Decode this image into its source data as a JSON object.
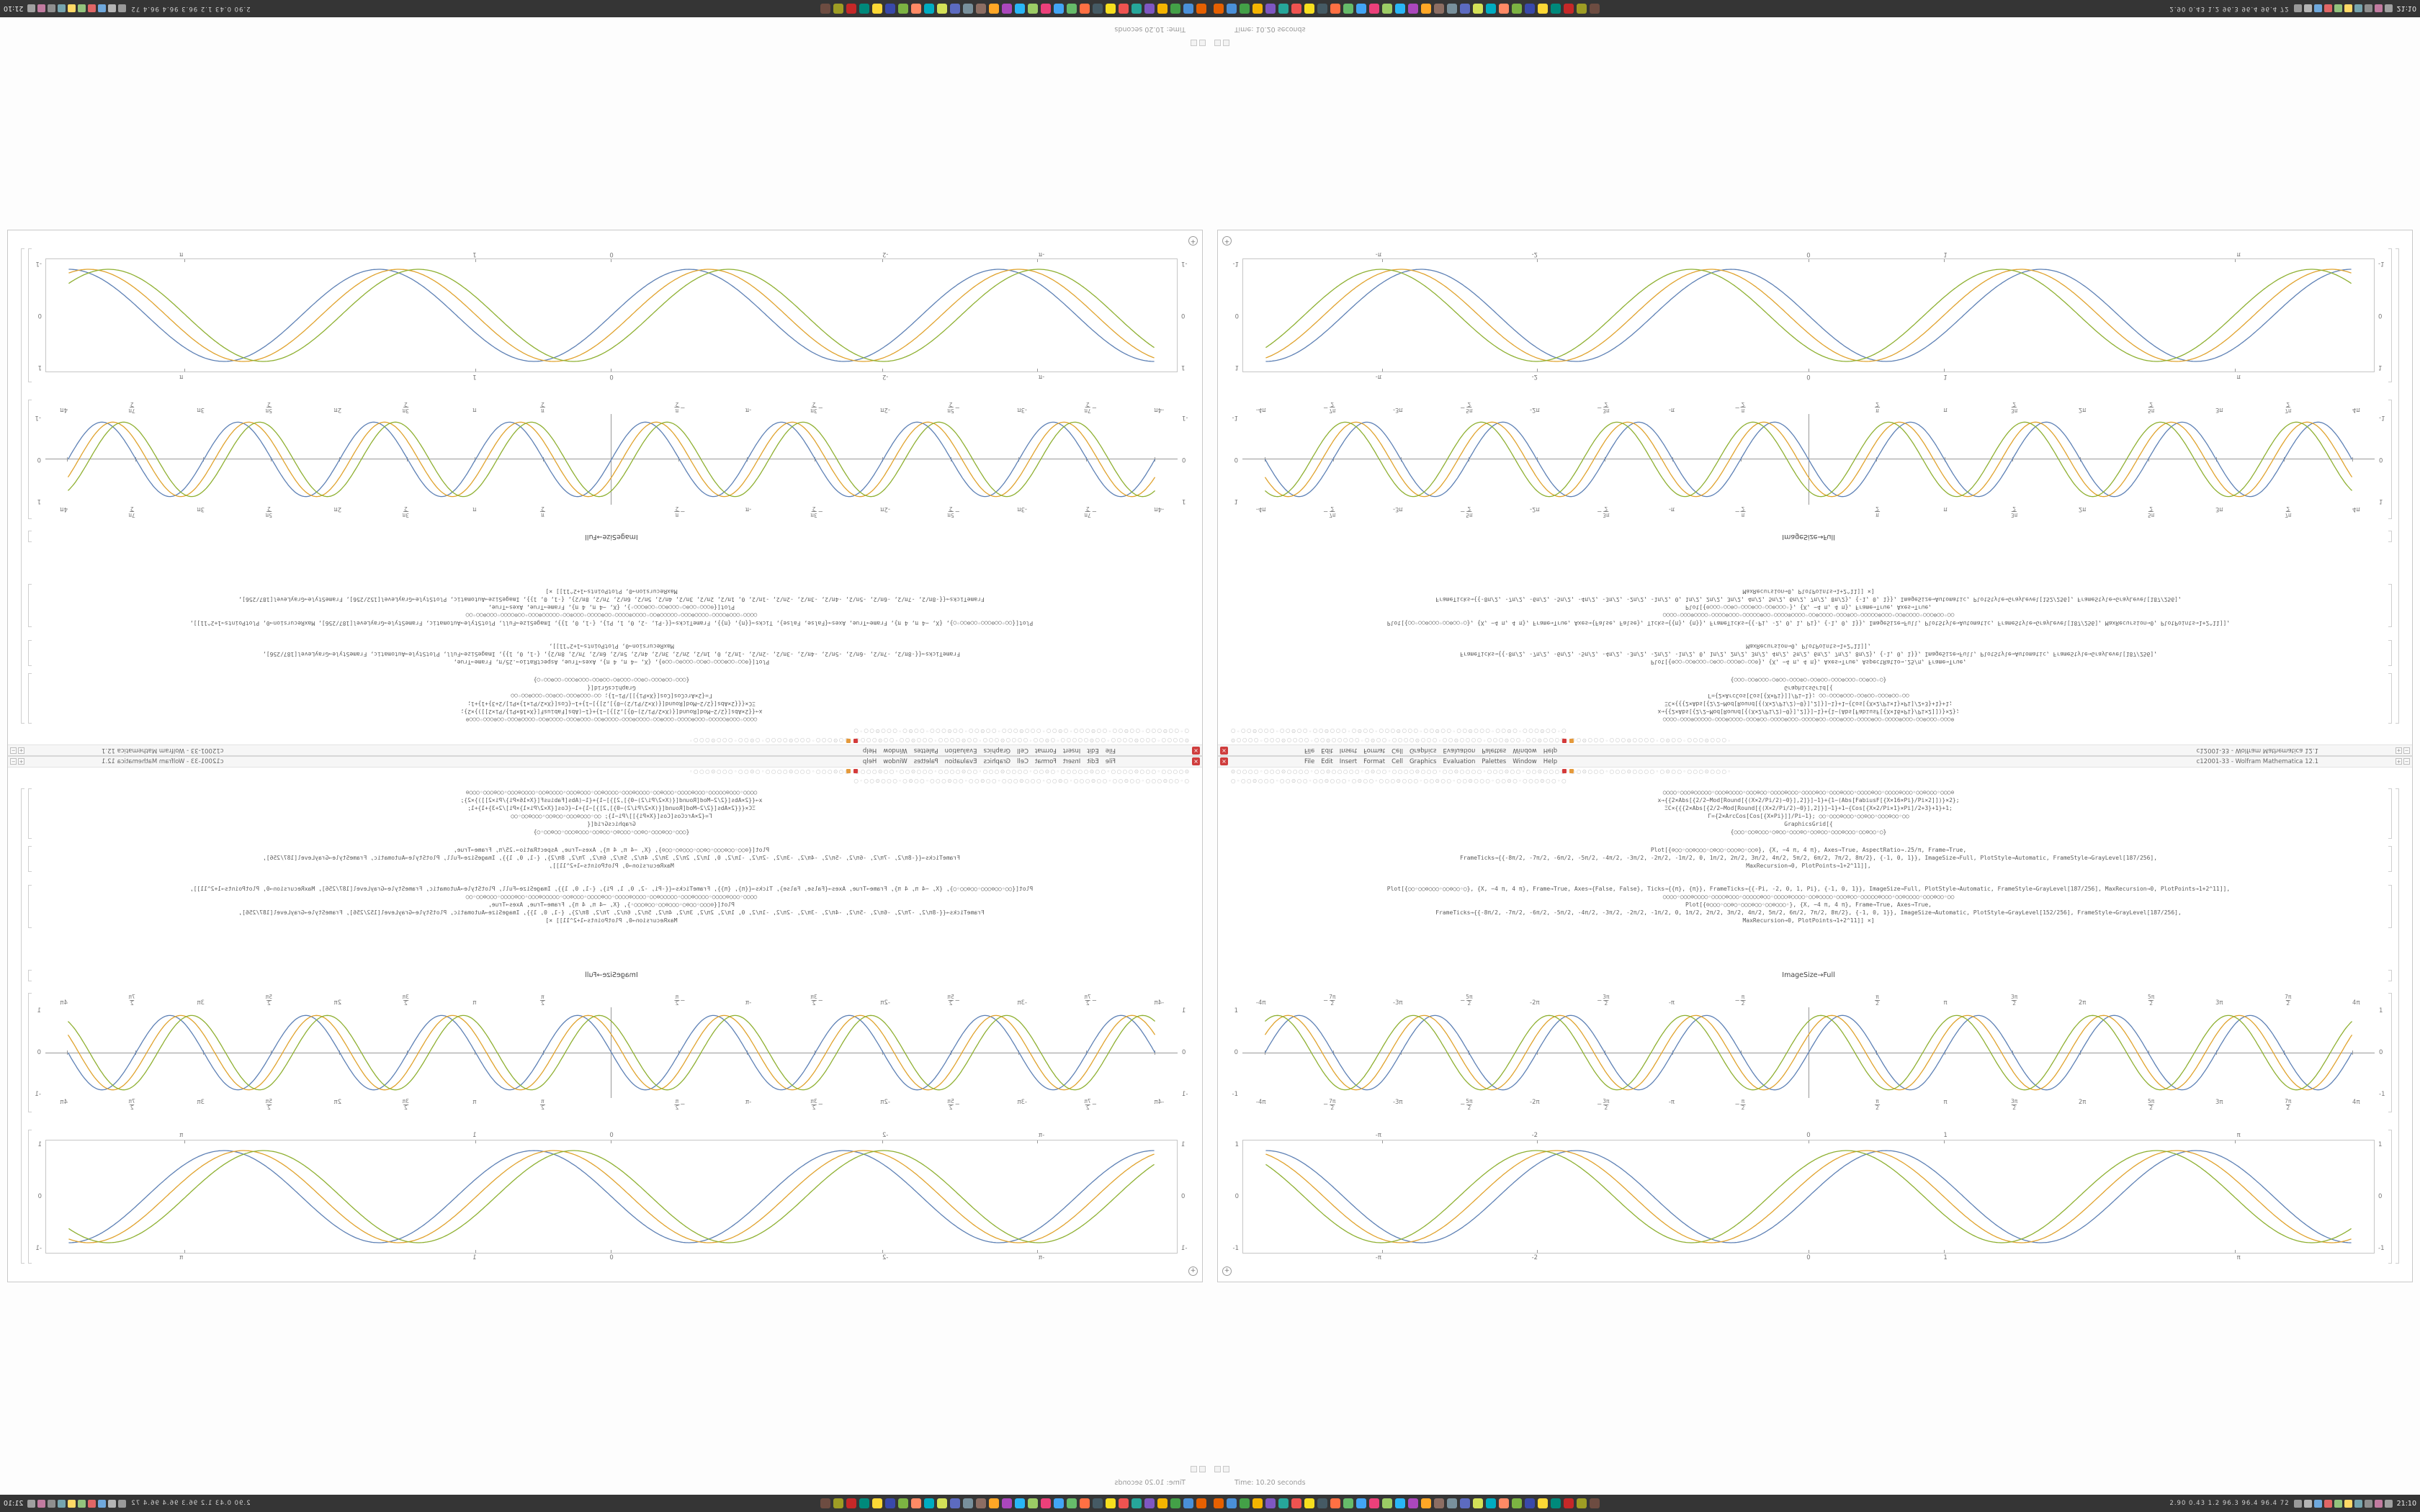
{
  "window": {
    "title": "c12001-33 - Wolfram Mathematica 12.1",
    "close_label": "×",
    "maximize_label": "+",
    "minimize_label": "−",
    "zoom_button": "+",
    "menu_items": [
      "File",
      "Edit",
      "Insert",
      "Format",
      "Cell",
      "Graphics",
      "Evaluation",
      "Palettes",
      "Window",
      "Help"
    ],
    "glyph_row_1": "⊙○○○○◦○○○⊙○○○○◦○○⊙○○○○○◦○⊙○○◦○○○○⊙○○○◦○○⊙○○○○◦○○○⊙○○◦○○⊙○○○○◦○○⊙○○○◦○○○⊙○○○○◦○⊙○○◦○○○⊙○○○◦",
    "glyph_row_2": "○◦○○⊙○○○◦○○⊙○○◦○○⊙○○○◦○⊙○○◦○○○⊙○○○◦○○⊙○○◦○○⊙○○○◦○○⊙○◦○○○⊙○○◦○",
    "accent_icon_colors": [
      "#d43b3b",
      "#e59a3c"
    ]
  },
  "notebook": {
    "out_label": "ImageSize→Full",
    "code_block_a": [
      "○○○○◦○○○⊙○○○○○◦○○○⊙○○○○◦○○○⊙○○◦○○○○⊙○○○◦○○○○⊙○○◦○○○⊙○○○◦○○○○⊙○○◦○○○○⊙○○○◦○○⊙○○○◦○○○⊙",
      "x→{{2×Abs[{2/2−Mod[Round[{(X×2/Pi/2)−0}],2]}]−1}+{1−(Abs[FabiusF[{X×16×Pi}/Pi×2]])}×2};",
      "ΞC×{{{2×Abs[{2/2−Mod[Round[{(X×2/Pi/2)−0}],2]}]−1}+1−{Cos[{X×2/Pi×1}×Pi]/2+3}+1}+1;",
      "Γ={2×ArcCos[Cos[{X×Pi}]]/Pi−1};   ○○◦○○○⊙○○○◦○○⊙○○◦○○○⊙○○◦○○",
      "GraphicsGrid[{",
      "{○○○◦○○⊙○○○◦○⊙○○◦○○○⊙○◦○○⊙○○◦○○○⊙○○○◦○○⊙○○◦○}"
    ],
    "code_block_b": [
      "Plot[{⊙○○◦○○⊙○○○◦○⊙○○◦○○○⊙○◦○○⊙}, {X, −4 π, 4 π}, Axes→True, AspectRatio→.25/π, Frame→True,",
      "FrameTicks→{{-8π/2, -7π/2, -6π/2, -5π/2, -4π/2, -3π/2, -2π/2, -1π/2, 0, 1π/2, 2π/2, 3π/2, 4π/2, 5π/2, 6π/2, 7π/2, 8π/2}, {-1, 0, 1}}, ImageSize→Full, PlotStyle→Automatic, FrameStyle→GrayLevel[187/256],",
      "MaxRecursion→0, PlotPoints→1+2^11]],"
    ],
    "code_block_c": [
      "Plot[{○○◦○○⊙○○○◦○○⊙○○◦○}, {X, −4 π, 4 π}, Frame→True, Axes→{False, False}, Ticks→{{π}, {π}}, FrameTicks→{{-Pi, -2, 0, 1, Pi}, {-1, 0, 1}}, ImageSize→Full, PlotStyle→Automatic, FrameStyle→GrayLevel[187/256], MaxRecursion→0, PlotPoints→1+2^11]],",
      "○○○○◦○○○⊙○○○○◦○○○○⊙○○○◦○○○○○⊙○○◦○○○○⊙○○○○◦○○⊙○○○○◦○○○⊙○○◦○○○○○⊙○○○◦○○⊙○○○○◦○○○⊙○○◦○○",
      "Plot[{⊙○○○◦○○⊙○◦○○○⊙○○◦○○⊙○○○◦}, {X, −4 π, 4 π}, Frame→True, Axes→True,",
      "FrameTicks→{{-8π/2, -7π/2, -6π/2, -5π/2, -4π/2, -3π/2, -2π/2, -1π/2, 0, 1π/2, 2π/2, 3π/2, 4π/2, 5π/2, 6π/2, 7π/2, 8π/2}, {-1, 0, 1}}, ImageSize→Automatic, PlotStyle→GrayLevel[152/256], FrameStyle→GrayLevel[187/256],",
      "MaxRecursion→0, PlotPoints→1+2^11]] ×]"
    ]
  },
  "chart_data": [
    {
      "type": "line",
      "title": "",
      "description": "Three phase-shifted sine curves plotted with center axes over [-4π, 4π]",
      "x_range": [
        -12.566,
        12.566
      ],
      "ylim": [
        -1,
        1
      ],
      "freq": 2,
      "series": [
        {
          "name": "blue-curve",
          "phase": 0,
          "color": "#5e81b5"
        },
        {
          "name": "orange-curve",
          "phase": 0.5,
          "color": "#e0a32e"
        },
        {
          "name": "green-curve",
          "phase": 1.0,
          "color": "#8fb032"
        }
      ],
      "x_tick_labels": [
        "-4π",
        "-7π/2",
        "-3π",
        "-5π/2",
        "-2π",
        "-3π/2",
        "-π",
        "-π/2",
        "",
        "π/2",
        "π",
        "3π/2",
        "2π",
        "5π/2",
        "3π",
        "7π/2",
        "4π"
      ],
      "y_tick_labels": [
        "1",
        "0",
        "-1"
      ],
      "frame": false,
      "axes": true
    },
    {
      "type": "line",
      "title": "",
      "description": "Three phase-shifted sine curves in a light gray frame",
      "x_range": [
        -4,
        4
      ],
      "ylim": [
        -1,
        1
      ],
      "freq": 2.75,
      "series": [
        {
          "name": "blue-curve",
          "phase": 0,
          "color": "#5e81b5"
        },
        {
          "name": "orange-curve",
          "phase": 0.4,
          "color": "#e0a32e"
        },
        {
          "name": "green-curve",
          "phase": 0.8,
          "color": "#8fb032"
        }
      ],
      "x_tick_values": [
        -3.1416,
        -2,
        0,
        1,
        3.1416
      ],
      "x_tick_labels": [
        "-π",
        "-2",
        "0",
        "1",
        "π"
      ],
      "y_tick_labels": [
        "1",
        "0",
        "-1"
      ],
      "frame": true,
      "axes": false
    }
  ],
  "statusbar": {
    "time_text": "Time: 10.20 seconds"
  },
  "taskbar": {
    "bg": "#353535",
    "app_icons": [
      "#e66000",
      "#4a90d9",
      "#43a047",
      "#f4b400",
      "#7e57c2",
      "#26a69a",
      "#ef5350",
      "#f7df1e",
      "#455a64",
      "#ff7043",
      "#66bb6a",
      "#42a5f5",
      "#ec407a",
      "#9ccc65",
      "#29b6f6",
      "#ab47bc",
      "#ffa726",
      "#8d6e63",
      "#78909c",
      "#5c6bc0",
      "#d4e157",
      "#00acc1",
      "#ff8a65",
      "#7cb342",
      "#3949ab",
      "#fdd835",
      "#00897b",
      "#c62828",
      "#9e9d24",
      "#6d4c41"
    ],
    "tray_icons": [
      "#9a9a9a",
      "#b5b5b5",
      "#6fa8dc",
      "#e06666",
      "#93c47d",
      "#ffd966",
      "#76a5af",
      "#8f8f8f",
      "#c27ba0",
      "#a0a0a0"
    ],
    "readout_text": "2.90  0.43  1.2  96.3  96.4  96.4  72",
    "clock_text": "21:10"
  }
}
